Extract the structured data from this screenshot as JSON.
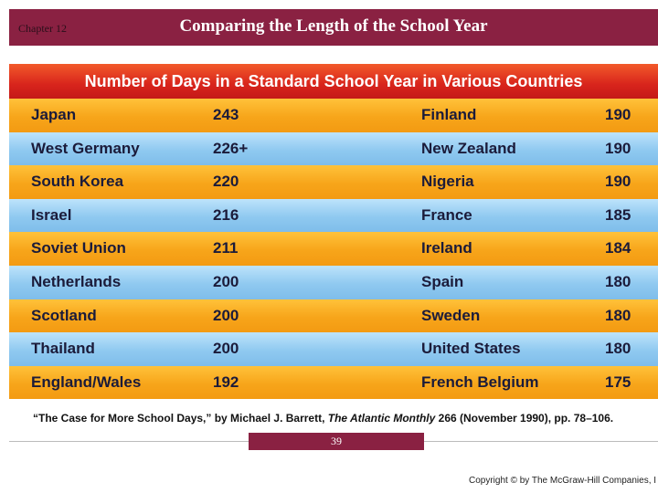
{
  "header": {
    "chapter": "Chapter 12",
    "title": "Comparing the Length of the School Year"
  },
  "table": {
    "title": "Number of Days in a Standard School Year in Various Countries",
    "rows": [
      [
        "Japan",
        "243",
        "Finland",
        "190"
      ],
      [
        "West Germany",
        "226+",
        "New Zealand",
        "190"
      ],
      [
        "South Korea",
        "220",
        "Nigeria",
        "190"
      ],
      [
        "Israel",
        "216",
        "France",
        "185"
      ],
      [
        "Soviet Union",
        "211",
        "Ireland",
        "184"
      ],
      [
        "Netherlands",
        "200",
        "Spain",
        "180"
      ],
      [
        "Scotland",
        "200",
        "Sweden",
        "180"
      ],
      [
        "Thailand",
        "200",
        "United States",
        "180"
      ],
      [
        "England/Wales",
        "192",
        "French Belgium",
        "175"
      ]
    ]
  },
  "citation": {
    "before": "“The Case for More School Days,” by Michael J. Barrett, ",
    "journal": "The Atlantic Monthly",
    "after": " 266 (November 1990), pp. 78–106."
  },
  "page_number": "39",
  "copyright": "Copyright © by The McGraw-Hill Companies, I"
}
